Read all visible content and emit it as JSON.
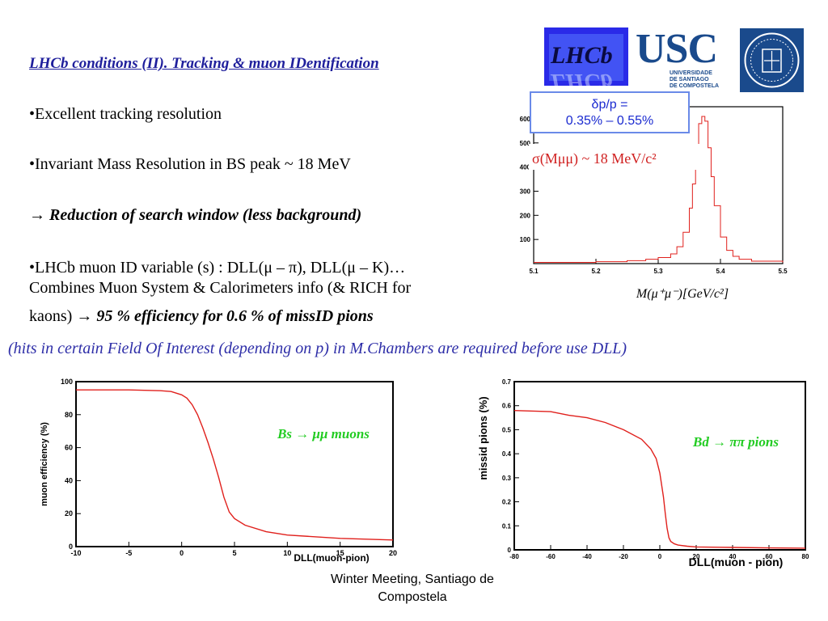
{
  "slide": {
    "title": "LHCb conditions (II). Tracking & muon IDentification",
    "bullet1": "•Excellent tracking resolution",
    "bullet2": "•Invariant Mass Resolution in BS peak ~ 18 MeV",
    "arrow_glyph": "→",
    "arrow_text": "Reduction of search window (less background)",
    "bullet3_line1": "•LHCb muon ID variable (s) : DLL(μ – π), DLL(μ – K)…",
    "bullet3_line2": "Combines Muon System & Calorimeters info (& RICH for",
    "bullet3_line3_prefix": "kaons)",
    "bullet3_line3_emph": "95 % efficiency for 0.6 % of missID pions",
    "note": "(hits in certain Field Of Interest (depending on p) in M.Chambers are required before use DLL)",
    "footer_line1": "Winter Meeting, Santiago de",
    "footer_line2": "Compostela"
  },
  "logos": {
    "lhcb": "LHCb",
    "usc_big": "USC",
    "usc_line1": "UNIVERSIDADE",
    "usc_line2": "DE SANTIAGO",
    "usc_line3": "DE COMPOSTELA"
  },
  "colors": {
    "title_blue": "#1f1f9c",
    "note_blue": "#2e2ea8",
    "curve_red": "#e0201c",
    "label_green": "#22cc22",
    "usc_blue": "#1a4a8c"
  },
  "chart_data": [
    {
      "type": "line",
      "name": "mass-histogram",
      "inset_line1": "δp/p =",
      "inset_line2": "0.35% – 0.55%",
      "annotation": "σ(Mμμ) ~ 18 MeV/c²",
      "xlabel": "M(μ⁺μ⁻)[GeV/c²]",
      "xlim": [
        5.1,
        5.5
      ],
      "ylim": [
        0,
        650
      ],
      "xticks": [
        "5.1",
        "5.2",
        "5.3",
        "5.4",
        "5.5"
      ],
      "yticks": [
        "100",
        "200",
        "300",
        "400",
        "500",
        "600"
      ],
      "x": [
        5.1,
        5.2,
        5.25,
        5.28,
        5.3,
        5.32,
        5.33,
        5.34,
        5.35,
        5.355,
        5.36,
        5.365,
        5.37,
        5.375,
        5.38,
        5.385,
        5.39,
        5.4,
        5.41,
        5.42,
        5.43,
        5.45,
        5.5
      ],
      "y": [
        5,
        8,
        12,
        18,
        25,
        40,
        70,
        130,
        230,
        330,
        470,
        580,
        610,
        590,
        480,
        360,
        240,
        110,
        55,
        30,
        18,
        10,
        5
      ]
    },
    {
      "type": "line",
      "name": "muon-efficiency",
      "label": "Bs → μμ muons",
      "ylabel": "muon efficiency (%)",
      "xlabel": "DLL(muon-pion)",
      "xlim": [
        -10,
        20
      ],
      "ylim": [
        0,
        100
      ],
      "xticks": [
        "-10",
        "-5",
        "0",
        "5",
        "10",
        "15",
        "20"
      ],
      "yticks": [
        "0",
        "20",
        "40",
        "60",
        "80",
        "100"
      ],
      "x": [
        -10,
        -5,
        -2,
        -1,
        0,
        0.5,
        1,
        1.5,
        2,
        2.5,
        3,
        3.5,
        4,
        4.5,
        5,
        6,
        8,
        10,
        15,
        20
      ],
      "y": [
        95,
        95,
        94.5,
        94,
        92,
        90,
        86,
        80,
        72,
        63,
        53,
        42,
        30,
        21,
        17,
        13,
        9,
        7,
        5,
        4
      ]
    },
    {
      "type": "line",
      "name": "missid-pions",
      "label": "Bd → ππ pions",
      "ylabel": "missid pions (%)",
      "xlabel": "DLL(muon - pion)",
      "xlim": [
        -80,
        80
      ],
      "ylim": [
        0,
        0.7
      ],
      "xticks": [
        "-80",
        "-60",
        "-40",
        "-20",
        "0",
        "20",
        "40",
        "60",
        "80"
      ],
      "yticks": [
        "0",
        "0.1",
        "0.2",
        "0.3",
        "0.4",
        "0.5",
        "0.6",
        "0.7"
      ],
      "x": [
        -80,
        -60,
        -50,
        -40,
        -30,
        -20,
        -10,
        -5,
        -2,
        0,
        2,
        3,
        4,
        5,
        6,
        8,
        10,
        15,
        20,
        40,
        60,
        80
      ],
      "y": [
        0.58,
        0.575,
        0.56,
        0.55,
        0.53,
        0.5,
        0.46,
        0.42,
        0.38,
        0.32,
        0.22,
        0.15,
        0.09,
        0.05,
        0.035,
        0.025,
        0.02,
        0.015,
        0.012,
        0.01,
        0.008,
        0.007
      ]
    }
  ]
}
